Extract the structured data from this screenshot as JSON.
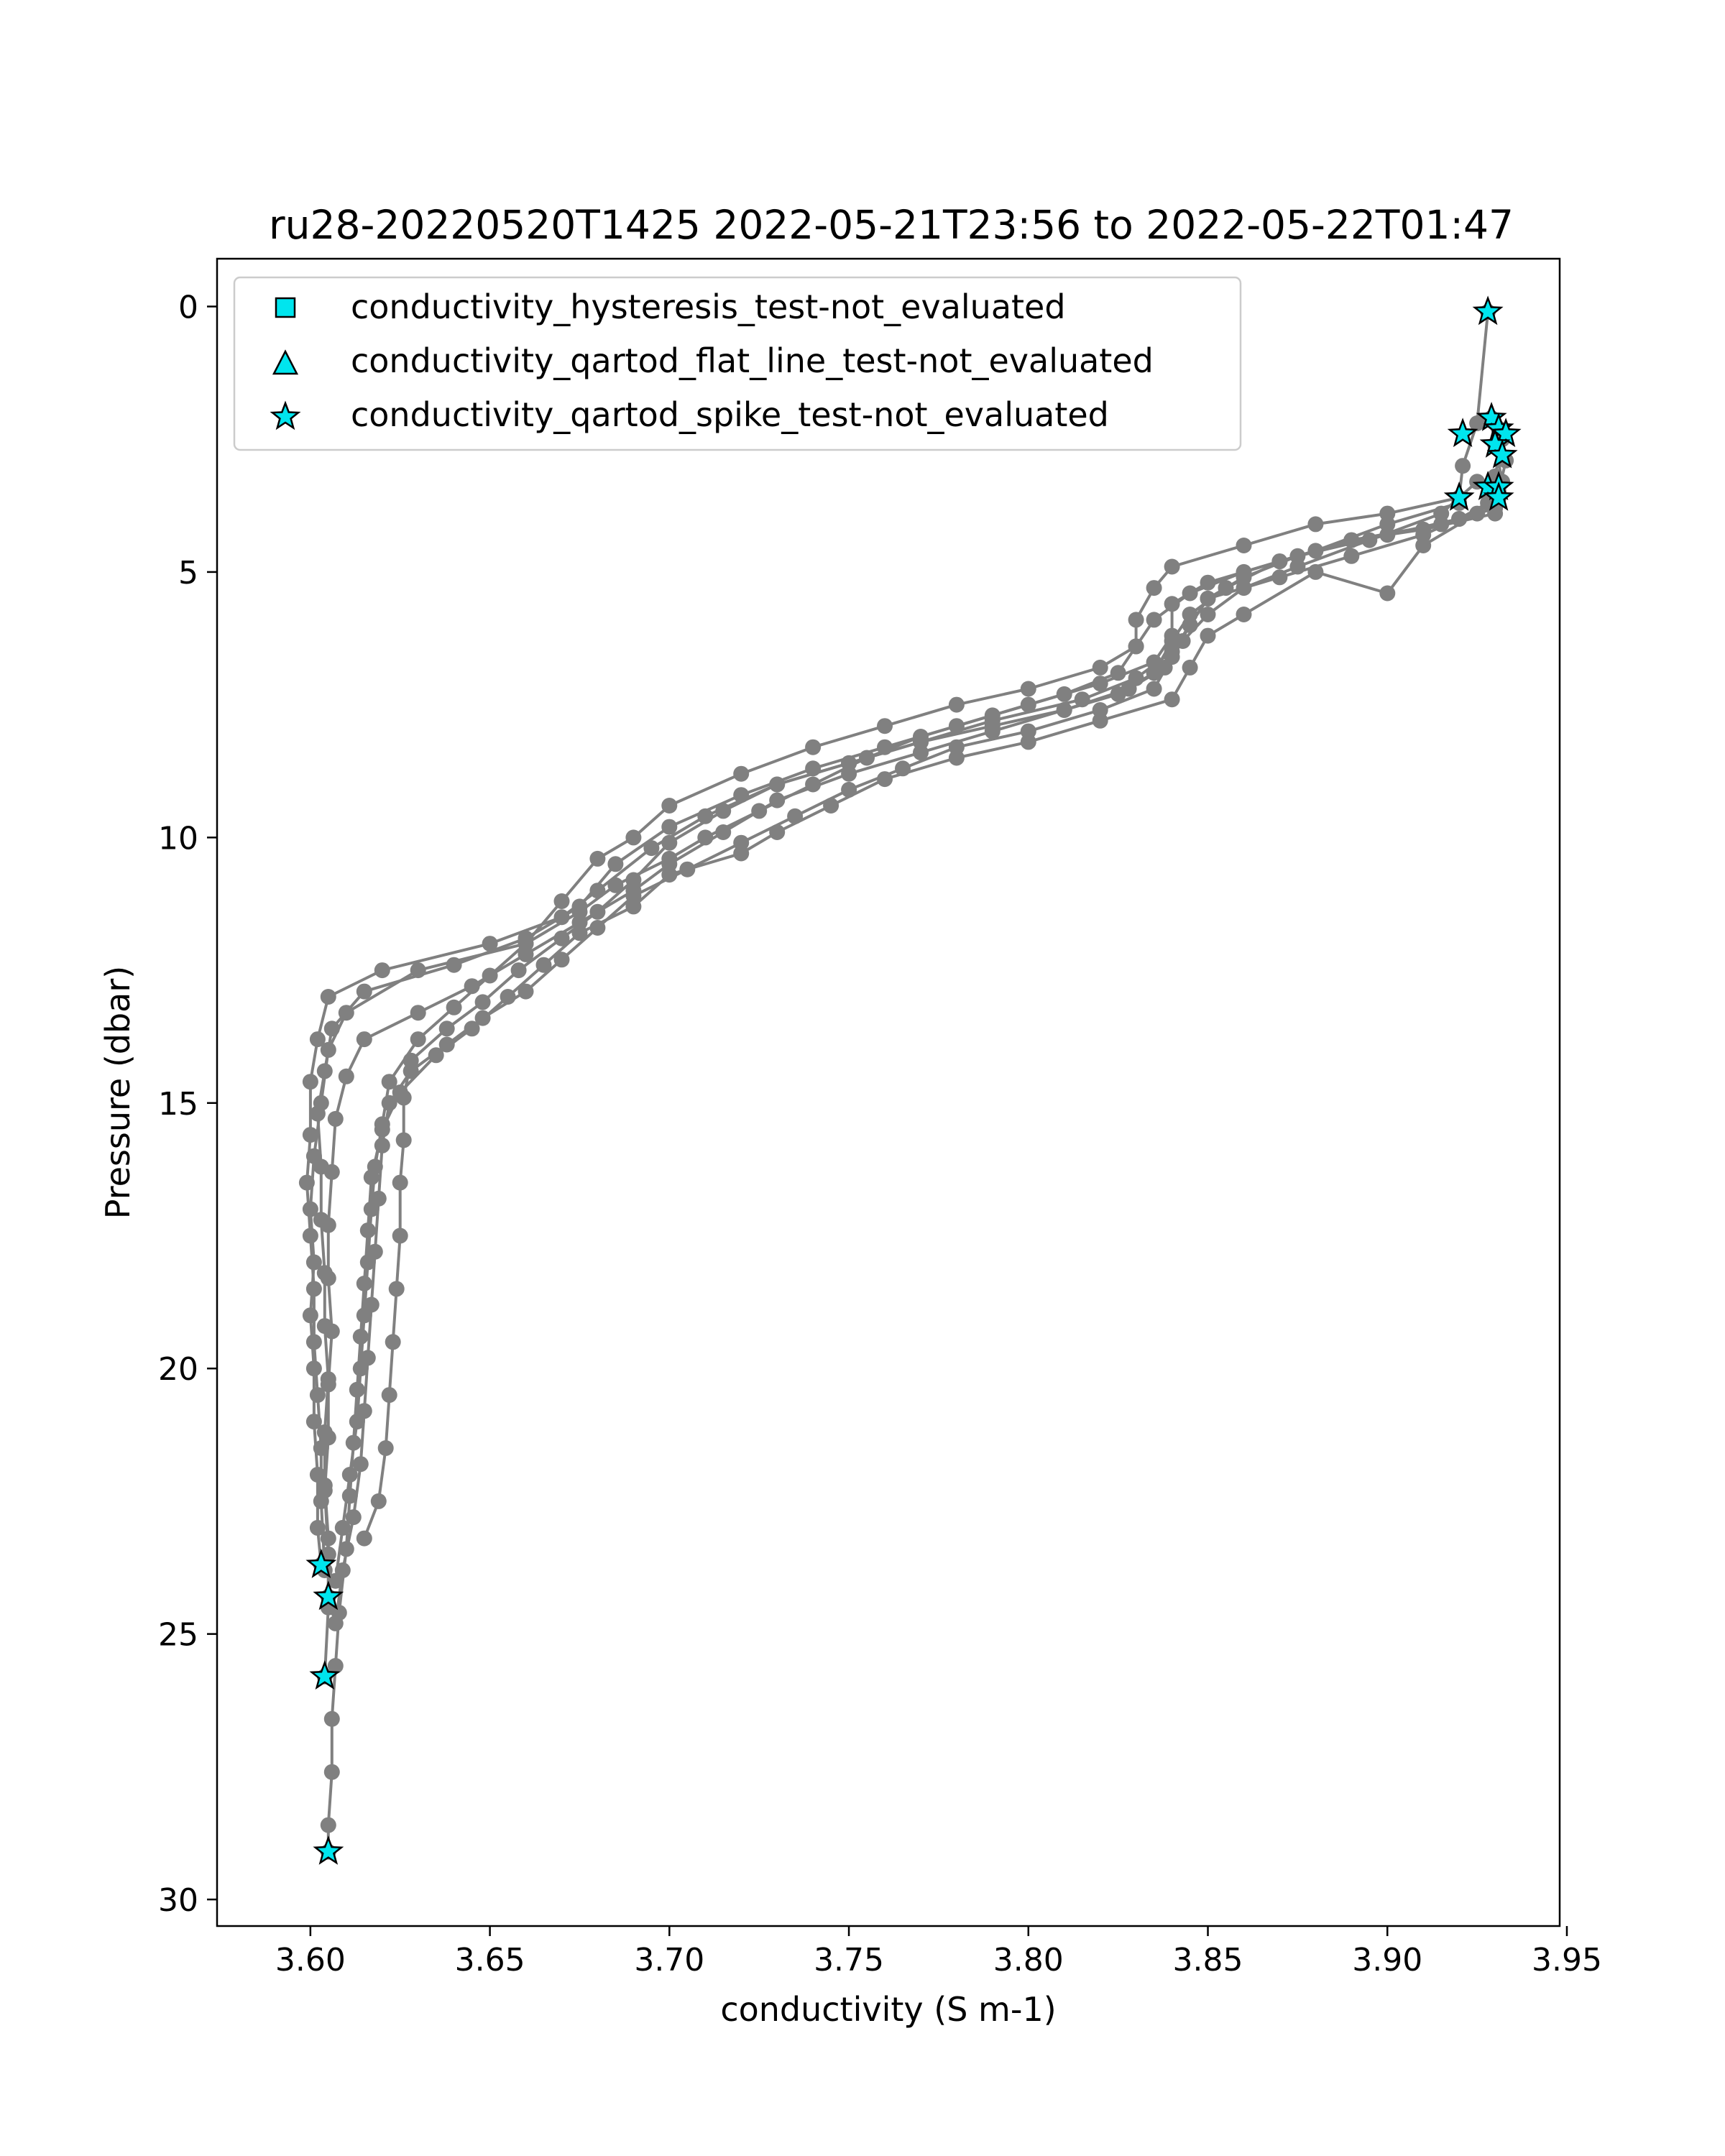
{
  "chart_data": {
    "type": "scatter",
    "title": "ru28-20220520T1425 2022-05-21T23:56 to 2022-05-22T01:47",
    "xlabel": "conductivity (S m-1)",
    "ylabel": "Pressure (dbar)",
    "xlim": [
      3.574,
      3.948
    ],
    "ylim": [
      30.5,
      -0.9
    ],
    "y_inverted": true,
    "xticks": [
      3.6,
      3.65,
      3.7,
      3.75,
      3.8,
      3.85,
      3.9,
      3.95
    ],
    "xtick_labels": [
      "3.60",
      "3.65",
      "3.70",
      "3.75",
      "3.80",
      "3.85",
      "3.90",
      "3.95"
    ],
    "yticks": [
      0,
      5,
      10,
      15,
      20,
      25,
      30
    ],
    "ytick_labels": [
      "0",
      "5",
      "10",
      "15",
      "20",
      "25",
      "30"
    ],
    "grid": false,
    "legend_position": "top-left",
    "legend": [
      {
        "label": "conductivity_hysteresis_test-not_evaluated",
        "marker": "square",
        "color": "#00e5ee"
      },
      {
        "label": "conductivity_qartod_flat_line_test-not_evaluated",
        "marker": "triangle",
        "color": "#00e5ee"
      },
      {
        "label": "conductivity_qartod_spike_test-not_evaluated",
        "marker": "star",
        "color": "#00e5ee"
      }
    ],
    "line_color": "#808080",
    "series": [
      {
        "values": [
          [
            3.928,
            0.1
          ],
          [
            3.925,
            2.2
          ],
          [
            3.921,
            3.0
          ],
          [
            3.92,
            3.6
          ],
          [
            3.9,
            3.9
          ],
          [
            3.88,
            4.1
          ],
          [
            3.86,
            4.5
          ],
          [
            3.84,
            4.9
          ],
          [
            3.835,
            5.3
          ],
          [
            3.83,
            5.9
          ],
          [
            3.83,
            6.4
          ],
          [
            3.82,
            6.8
          ],
          [
            3.8,
            7.2
          ],
          [
            3.78,
            7.5
          ],
          [
            3.76,
            7.9
          ],
          [
            3.74,
            8.3
          ],
          [
            3.72,
            8.8
          ],
          [
            3.7,
            9.4
          ],
          [
            3.69,
            10.0
          ],
          [
            3.68,
            10.4
          ],
          [
            3.67,
            11.2
          ],
          [
            3.66,
            12.0
          ],
          [
            3.63,
            12.5
          ],
          [
            3.61,
            13.3
          ],
          [
            3.605,
            14.0
          ],
          [
            3.603,
            15.0
          ],
          [
            3.601,
            16.0
          ],
          [
            3.6,
            17.0
          ],
          [
            3.601,
            18.0
          ],
          [
            3.6,
            19.0
          ],
          [
            3.601,
            20.0
          ],
          [
            3.601,
            21.0
          ],
          [
            3.602,
            22.0
          ],
          [
            3.602,
            23.0
          ],
          [
            3.603,
            23.7
          ]
        ]
      },
      {
        "values": [
          [
            3.929,
            2.1
          ],
          [
            3.932,
            2.5
          ],
          [
            3.93,
            3.2
          ],
          [
            3.928,
            3.7
          ],
          [
            3.92,
            4.0
          ],
          [
            3.91,
            4.3
          ],
          [
            3.89,
            4.7
          ],
          [
            3.87,
            5.1
          ],
          [
            3.85,
            5.5
          ],
          [
            3.845,
            6.0
          ],
          [
            3.84,
            6.5
          ],
          [
            3.83,
            7.0
          ],
          [
            3.815,
            7.4
          ],
          [
            3.79,
            7.8
          ],
          [
            3.77,
            8.2
          ],
          [
            3.75,
            8.6
          ],
          [
            3.73,
            9.0
          ],
          [
            3.71,
            9.6
          ],
          [
            3.695,
            10.2
          ],
          [
            3.68,
            11.0
          ],
          [
            3.67,
            11.5
          ],
          [
            3.65,
            12.0
          ],
          [
            3.62,
            12.5
          ],
          [
            3.605,
            13.0
          ],
          [
            3.602,
            13.8
          ],
          [
            3.6,
            14.6
          ],
          [
            3.6,
            15.6
          ],
          [
            3.599,
            16.5
          ],
          [
            3.6,
            17.5
          ],
          [
            3.601,
            18.5
          ],
          [
            3.601,
            19.5
          ],
          [
            3.602,
            20.5
          ],
          [
            3.603,
            21.5
          ],
          [
            3.603,
            22.5
          ],
          [
            3.604,
            23.8
          ]
        ]
      },
      {
        "values": [
          [
            3.931,
            2.3
          ],
          [
            3.933,
            2.9
          ],
          [
            3.931,
            3.5
          ],
          [
            3.93,
            3.9
          ],
          [
            3.91,
            4.2
          ],
          [
            3.89,
            4.4
          ],
          [
            3.87,
            4.8
          ],
          [
            3.85,
            5.2
          ],
          [
            3.84,
            5.6
          ],
          [
            3.84,
            6.2
          ],
          [
            3.835,
            6.7
          ],
          [
            3.82,
            7.1
          ],
          [
            3.8,
            7.5
          ],
          [
            3.78,
            7.9
          ],
          [
            3.76,
            8.3
          ],
          [
            3.74,
            8.7
          ],
          [
            3.72,
            9.2
          ],
          [
            3.7,
            9.8
          ],
          [
            3.685,
            10.5
          ],
          [
            3.675,
            11.3
          ],
          [
            3.66,
            11.9
          ],
          [
            3.64,
            12.4
          ],
          [
            3.615,
            12.9
          ],
          [
            3.606,
            13.6
          ],
          [
            3.604,
            14.4
          ],
          [
            3.602,
            15.2
          ],
          [
            3.603,
            16.2
          ],
          [
            3.603,
            17.2
          ],
          [
            3.604,
            18.2
          ],
          [
            3.604,
            19.2
          ],
          [
            3.605,
            20.2
          ],
          [
            3.604,
            21.2
          ],
          [
            3.604,
            22.2
          ],
          [
            3.605,
            23.2
          ],
          [
            3.605,
            24.3
          ]
        ]
      },
      {
        "values": [
          [
            3.93,
            2.6
          ],
          [
            3.932,
            3.3
          ],
          [
            3.93,
            3.8
          ],
          [
            3.915,
            4.1
          ],
          [
            3.89,
            4.4
          ],
          [
            3.87,
            4.8
          ],
          [
            3.855,
            5.3
          ],
          [
            3.845,
            5.8
          ],
          [
            3.84,
            6.3
          ],
          [
            3.835,
            6.9
          ],
          [
            3.825,
            7.3
          ],
          [
            3.81,
            7.6
          ],
          [
            3.79,
            8.0
          ],
          [
            3.77,
            8.4
          ],
          [
            3.75,
            8.8
          ],
          [
            3.73,
            9.3
          ],
          [
            3.715,
            9.9
          ],
          [
            3.7,
            10.5
          ],
          [
            3.69,
            11.0
          ],
          [
            3.675,
            11.6
          ],
          [
            3.66,
            12.2
          ],
          [
            3.645,
            12.8
          ],
          [
            3.63,
            13.3
          ],
          [
            3.615,
            13.8
          ],
          [
            3.61,
            14.5
          ],
          [
            3.607,
            15.3
          ],
          [
            3.606,
            16.3
          ],
          [
            3.605,
            17.3
          ],
          [
            3.605,
            18.3
          ],
          [
            3.606,
            19.3
          ],
          [
            3.605,
            20.3
          ],
          [
            3.605,
            21.3
          ],
          [
            3.604,
            22.3
          ],
          [
            3.605,
            23.5
          ],
          [
            3.605,
            24.5
          ],
          [
            3.604,
            25.8
          ]
        ]
      },
      {
        "values": [
          [
            3.931,
            3.4
          ],
          [
            3.925,
            3.9
          ],
          [
            3.91,
            4.5
          ],
          [
            3.9,
            5.4
          ],
          [
            3.88,
            5.0
          ],
          [
            3.86,
            5.8
          ],
          [
            3.85,
            6.2
          ],
          [
            3.845,
            6.8
          ],
          [
            3.84,
            7.4
          ],
          [
            3.82,
            7.8
          ],
          [
            3.8,
            8.2
          ],
          [
            3.78,
            8.5
          ],
          [
            3.76,
            8.9
          ],
          [
            3.745,
            9.4
          ],
          [
            3.73,
            9.9
          ],
          [
            3.72,
            10.3
          ],
          [
            3.7,
            10.7
          ],
          [
            3.69,
            11.3
          ],
          [
            3.675,
            11.8
          ],
          [
            3.665,
            12.4
          ],
          [
            3.655,
            13.0
          ],
          [
            3.645,
            13.6
          ],
          [
            3.635,
            14.1
          ],
          [
            3.625,
            14.8
          ],
          [
            3.62,
            15.5
          ],
          [
            3.617,
            16.4
          ],
          [
            3.616,
            17.4
          ],
          [
            3.615,
            18.4
          ],
          [
            3.614,
            19.4
          ],
          [
            3.613,
            20.4
          ],
          [
            3.612,
            21.4
          ],
          [
            3.611,
            22.4
          ],
          [
            3.61,
            23.4
          ],
          [
            3.608,
            24.6
          ],
          [
            3.607,
            25.6
          ],
          [
            3.606,
            26.6
          ],
          [
            3.606,
            27.6
          ],
          [
            3.605,
            28.6
          ],
          [
            3.605,
            29.1
          ]
        ]
      },
      {
        "values": [
          [
            3.931,
            3.6
          ],
          [
            3.92,
            4.0
          ],
          [
            3.9,
            4.3
          ],
          [
            3.875,
            4.7
          ],
          [
            3.86,
            5.1
          ],
          [
            3.85,
            5.5
          ],
          [
            3.845,
            6.0
          ],
          [
            3.84,
            6.6
          ],
          [
            3.835,
            7.2
          ],
          [
            3.82,
            7.6
          ],
          [
            3.8,
            8.0
          ],
          [
            3.78,
            8.3
          ],
          [
            3.765,
            8.7
          ],
          [
            3.75,
            9.1
          ],
          [
            3.735,
            9.6
          ],
          [
            3.72,
            10.1
          ],
          [
            3.705,
            10.6
          ],
          [
            3.69,
            11.1
          ],
          [
            3.68,
            11.7
          ],
          [
            3.67,
            12.3
          ],
          [
            3.66,
            12.9
          ],
          [
            3.648,
            13.4
          ],
          [
            3.638,
            13.9
          ],
          [
            3.628,
            14.4
          ],
          [
            3.622,
            15.0
          ],
          [
            3.62,
            15.8
          ],
          [
            3.619,
            16.8
          ],
          [
            3.618,
            17.8
          ],
          [
            3.617,
            18.8
          ],
          [
            3.616,
            19.8
          ],
          [
            3.615,
            20.8
          ],
          [
            3.614,
            21.8
          ],
          [
            3.612,
            22.8
          ],
          [
            3.609,
            23.8
          ],
          [
            3.607,
            24.8
          ]
        ]
      },
      {
        "values": [
          [
            3.92,
            3.7
          ],
          [
            3.9,
            4.1
          ],
          [
            3.88,
            4.6
          ],
          [
            3.86,
            5.0
          ],
          [
            3.845,
            5.4
          ],
          [
            3.835,
            5.9
          ],
          [
            3.83,
            6.4
          ],
          [
            3.825,
            6.9
          ],
          [
            3.81,
            7.3
          ],
          [
            3.79,
            7.7
          ],
          [
            3.77,
            8.1
          ],
          [
            3.755,
            8.5
          ],
          [
            3.74,
            9.0
          ],
          [
            3.725,
            9.5
          ],
          [
            3.71,
            10.0
          ],
          [
            3.7,
            10.4
          ],
          [
            3.685,
            10.9
          ],
          [
            3.675,
            11.4
          ],
          [
            3.66,
            12.0
          ],
          [
            3.65,
            12.6
          ],
          [
            3.64,
            13.2
          ],
          [
            3.63,
            13.8
          ],
          [
            3.622,
            14.6
          ],
          [
            3.62,
            15.4
          ],
          [
            3.618,
            16.2
          ],
          [
            3.617,
            17.0
          ],
          [
            3.616,
            18.0
          ],
          [
            3.615,
            19.0
          ],
          [
            3.614,
            20.0
          ],
          [
            3.613,
            21.0
          ],
          [
            3.611,
            22.0
          ],
          [
            3.609,
            23.0
          ],
          [
            3.607,
            24.0
          ]
        ]
      },
      {
        "values": [
          [
            3.925,
            3.3
          ],
          [
            3.915,
            3.9
          ],
          [
            3.895,
            4.4
          ],
          [
            3.875,
            4.9
          ],
          [
            3.86,
            5.3
          ],
          [
            3.85,
            5.8
          ],
          [
            3.843,
            6.3
          ],
          [
            3.838,
            6.8
          ],
          [
            3.828,
            7.2
          ],
          [
            3.81,
            7.6
          ],
          [
            3.79,
            7.9
          ],
          [
            3.77,
            8.2
          ],
          [
            3.75,
            8.6
          ],
          [
            3.73,
            9.0
          ],
          [
            3.715,
            9.5
          ],
          [
            3.7,
            10.1
          ],
          [
            3.69,
            10.8
          ],
          [
            3.68,
            11.4
          ],
          [
            3.67,
            11.9
          ],
          [
            3.658,
            12.5
          ],
          [
            3.648,
            13.1
          ],
          [
            3.638,
            13.6
          ],
          [
            3.628,
            14.2
          ],
          [
            3.626,
            14.9
          ],
          [
            3.626,
            15.7
          ],
          [
            3.625,
            16.5
          ],
          [
            3.625,
            17.5
          ],
          [
            3.624,
            18.5
          ],
          [
            3.623,
            19.5
          ],
          [
            3.622,
            20.5
          ],
          [
            3.621,
            21.5
          ],
          [
            3.619,
            22.5
          ],
          [
            3.615,
            23.2
          ]
        ]
      }
    ],
    "star_points": [
      [
        3.928,
        0.1
      ],
      [
        3.921,
        2.4
      ],
      [
        3.929,
        2.1
      ],
      [
        3.931,
        2.3
      ],
      [
        3.933,
        2.4
      ],
      [
        3.93,
        2.6
      ],
      [
        3.932,
        2.8
      ],
      [
        3.928,
        3.4
      ],
      [
        3.931,
        3.4
      ],
      [
        3.92,
        3.6
      ],
      [
        3.931,
        3.6
      ],
      [
        3.603,
        23.7
      ],
      [
        3.605,
        24.3
      ],
      [
        3.604,
        25.8
      ],
      [
        3.605,
        29.1
      ]
    ]
  }
}
